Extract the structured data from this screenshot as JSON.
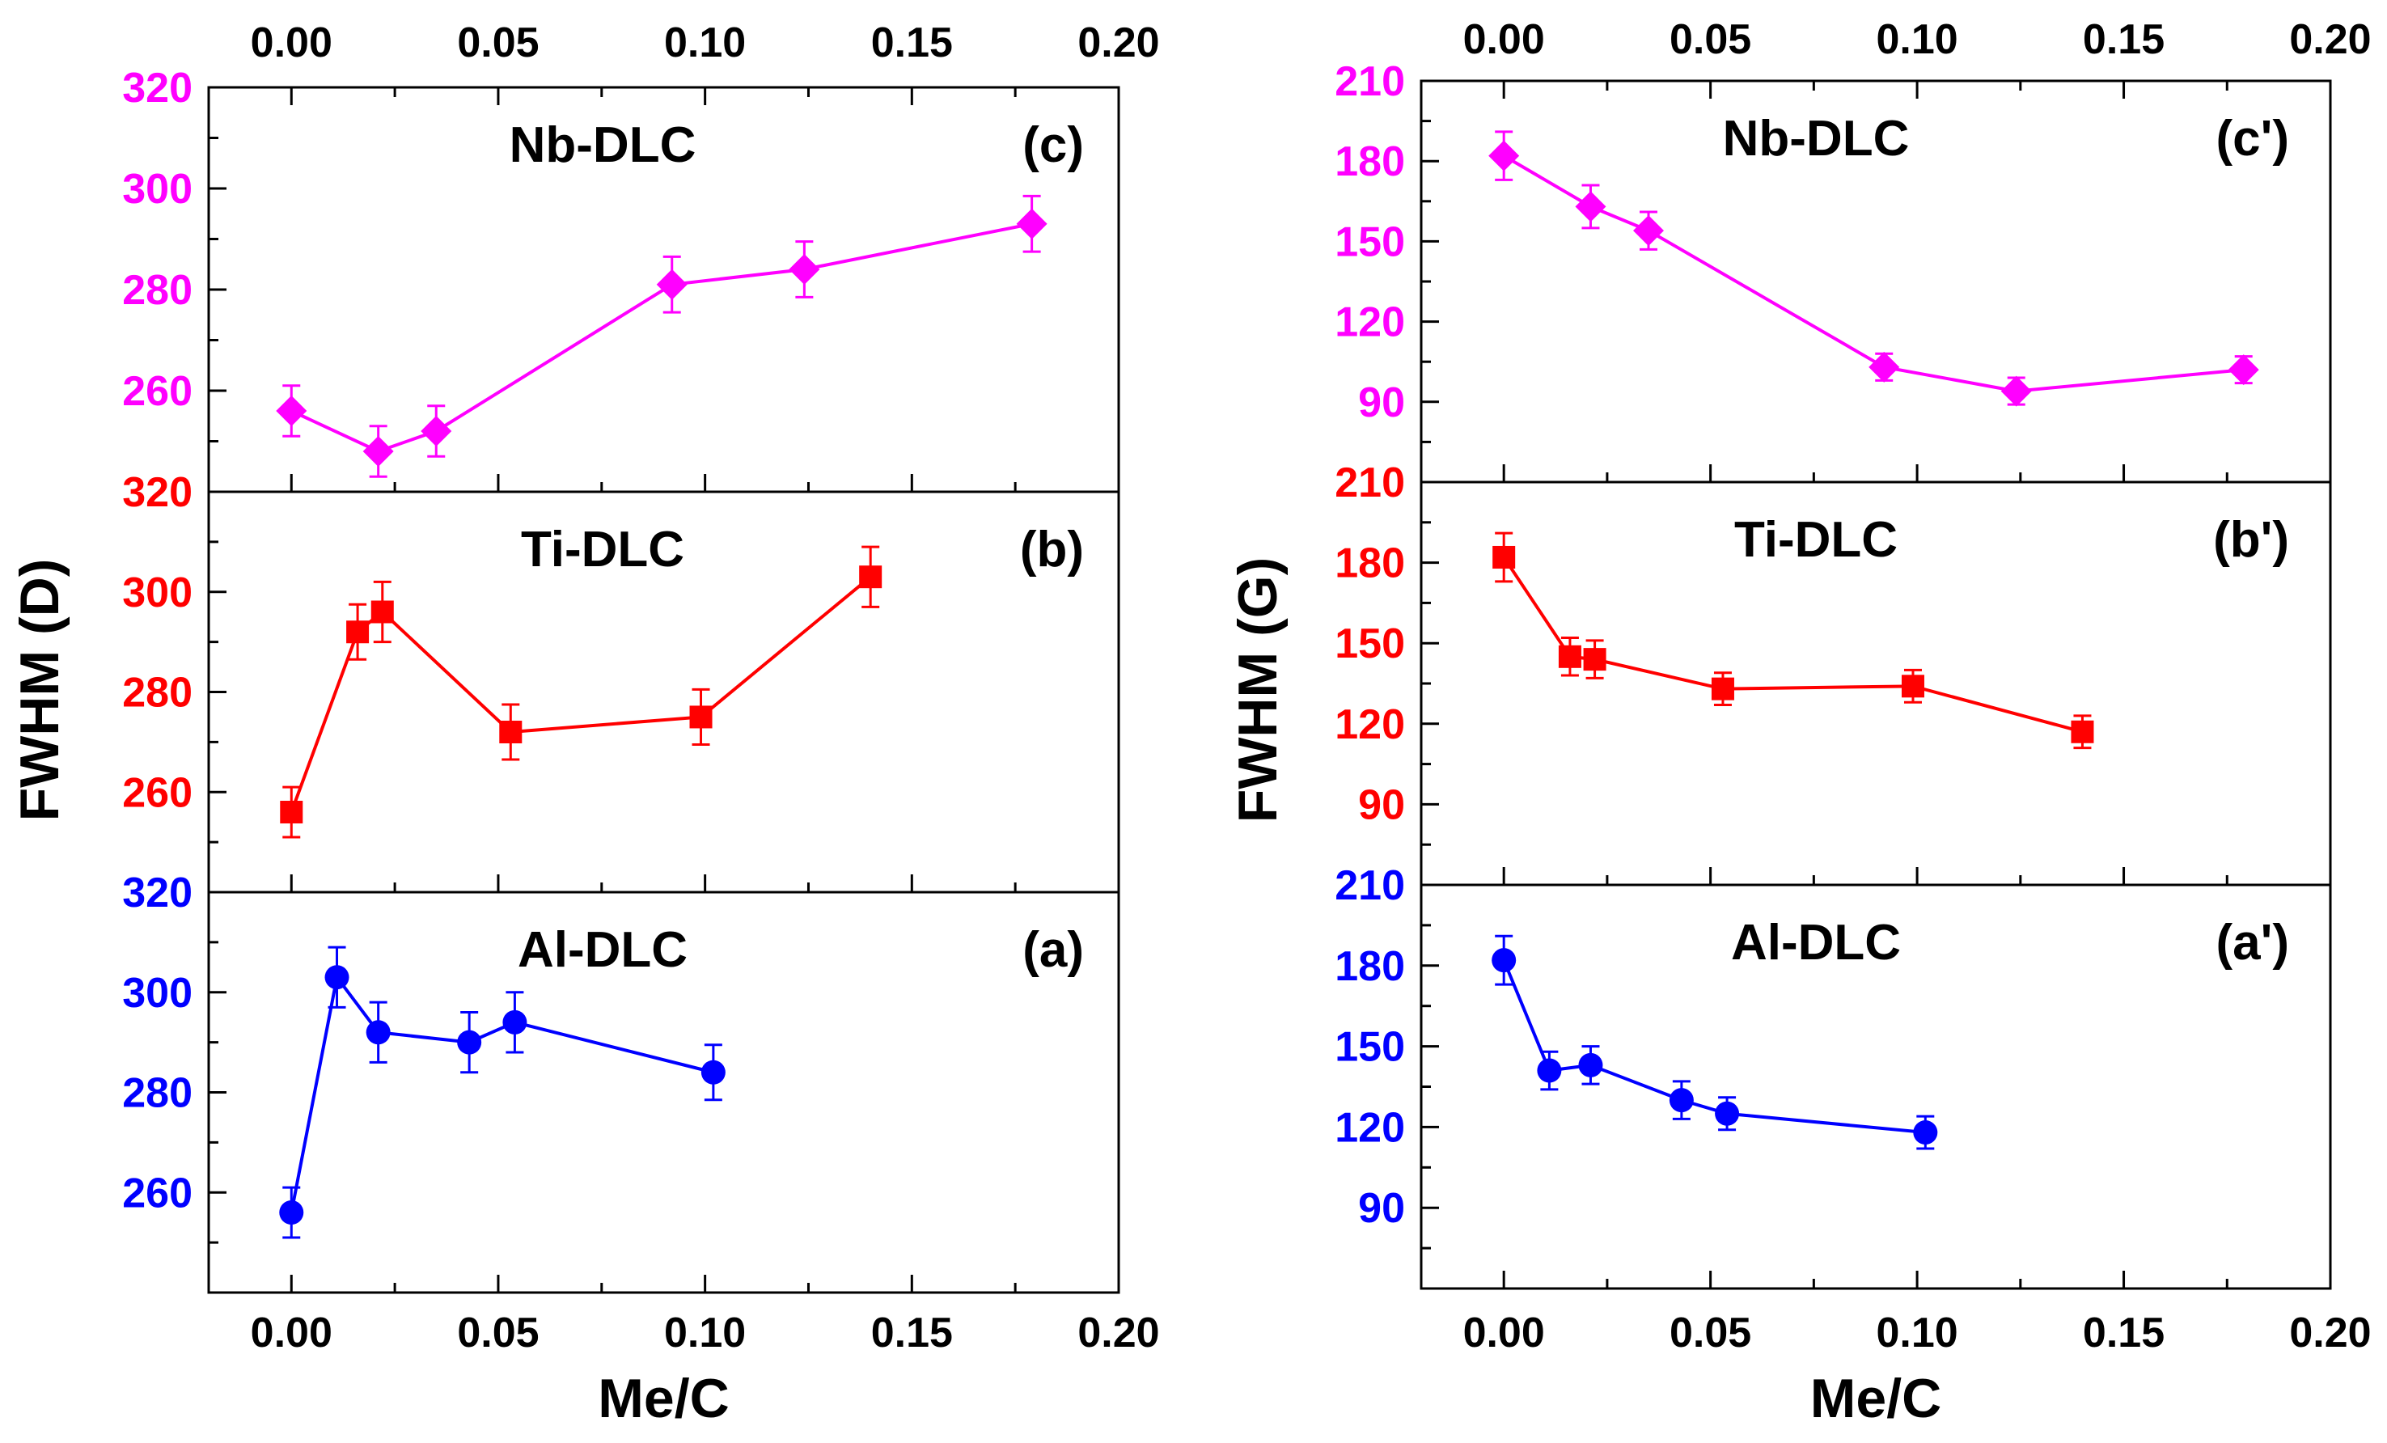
{
  "chart_data": [
    {
      "type": "line",
      "name": "left-figure",
      "xlabel": "Me/C",
      "ylabel": "FWHM (D)",
      "xlim": [
        -0.02,
        0.2
      ],
      "x_ticks": [
        0.0,
        0.05,
        0.1,
        0.15,
        0.2
      ],
      "x_tick_labels": [
        "0.00",
        "0.05",
        "0.10",
        "0.15",
        "0.20"
      ],
      "panels": [
        {
          "title": "Nb-DLC",
          "tag": "(c)",
          "color": "#ff00ff",
          "marker": "diamond",
          "ylim": [
            240,
            320
          ],
          "y_ticks": [
            260,
            280,
            300,
            320
          ],
          "y_tick_labels": [
            "260",
            "280",
            "300",
            "320"
          ],
          "x": [
            0.0,
            0.021,
            0.035,
            0.092,
            0.124,
            0.179
          ],
          "y": [
            256,
            248,
            252,
            281,
            284,
            293
          ],
          "err": [
            5,
            5,
            5,
            5.5,
            5.5,
            5.5
          ]
        },
        {
          "title": "Ti-DLC",
          "tag": "(b)",
          "color": "#ff0000",
          "marker": "square",
          "ylim": [
            240,
            320
          ],
          "y_ticks": [
            260,
            280,
            300,
            320
          ],
          "y_tick_labels": [
            "260",
            "280",
            "300",
            "320"
          ],
          "x": [
            0.0,
            0.016,
            0.022,
            0.053,
            0.099,
            0.14
          ],
          "y": [
            256,
            292,
            296,
            272,
            275,
            303
          ],
          "err": [
            5,
            5.5,
            6,
            5.5,
            5.5,
            6
          ]
        },
        {
          "title": "Al-DLC",
          "tag": "(a)",
          "color": "#0000ff",
          "marker": "circle",
          "ylim": [
            240,
            320
          ],
          "y_ticks": [
            260,
            280,
            300,
            320
          ],
          "y_tick_labels": [
            "260",
            "280",
            "300",
            "320"
          ],
          "x": [
            0.0,
            0.011,
            0.021,
            0.043,
            0.054,
            0.102
          ],
          "y": [
            256,
            303,
            292,
            290,
            294,
            284
          ],
          "err": [
            5,
            6,
            6,
            6,
            6,
            5.5
          ]
        }
      ]
    },
    {
      "type": "line",
      "name": "right-figure",
      "xlabel": "Me/C",
      "ylabel": "FWHM (G)",
      "xlim": [
        -0.02,
        0.2
      ],
      "x_ticks": [
        0.0,
        0.05,
        0.1,
        0.15,
        0.2
      ],
      "x_tick_labels": [
        "0.00",
        "0.05",
        "0.10",
        "0.15",
        "0.20"
      ],
      "panels": [
        {
          "title": "Nb-DLC",
          "tag": "(c')",
          "color": "#ff00ff",
          "marker": "diamond",
          "ylim": [
            60,
            210
          ],
          "y_ticks": [
            90,
            120,
            150,
            180,
            210
          ],
          "y_tick_labels": [
            "90",
            "120",
            "150",
            "180",
            "210"
          ],
          "x": [
            0.0,
            0.021,
            0.035,
            0.092,
            0.124,
            0.179
          ],
          "y": [
            182,
            163,
            154,
            103,
            94,
            102
          ],
          "err": [
            9,
            8,
            7,
            5,
            5,
            5
          ]
        },
        {
          "title": "Ti-DLC",
          "tag": "(b')",
          "color": "#ff0000",
          "marker": "square",
          "ylim": [
            60,
            210
          ],
          "y_ticks": [
            90,
            120,
            150,
            180,
            210
          ],
          "y_tick_labels": [
            "90",
            "120",
            "150",
            "180",
            "210"
          ],
          "x": [
            0.0,
            0.016,
            0.022,
            0.053,
            0.099,
            0.14
          ],
          "y": [
            182,
            145,
            144,
            133,
            134,
            117
          ],
          "err": [
            9,
            7,
            7,
            6,
            6,
            6
          ]
        },
        {
          "title": "Al-DLC",
          "tag": "(a')",
          "color": "#0000ff",
          "marker": "circle",
          "ylim": [
            60,
            210
          ],
          "y_ticks": [
            90,
            120,
            150,
            180,
            210
          ],
          "y_tick_labels": [
            "90",
            "120",
            "150",
            "180",
            "210"
          ],
          "x": [
            0.0,
            0.011,
            0.021,
            0.043,
            0.054,
            0.102
          ],
          "y": [
            182,
            141,
            143,
            130,
            125,
            118
          ],
          "err": [
            9,
            7,
            7,
            7,
            6,
            6
          ]
        }
      ]
    }
  ]
}
